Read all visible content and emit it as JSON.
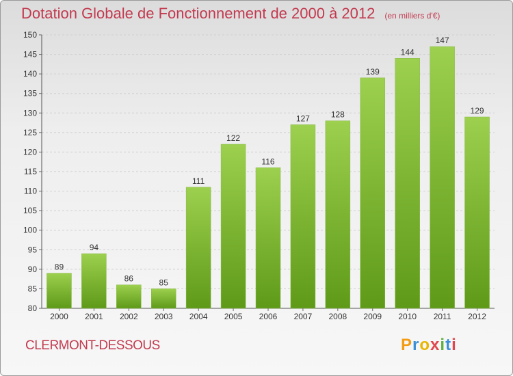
{
  "title": "Dotation Globale de Fonctionnement de 2000 à 2012",
  "unit": "(en milliers d'€)",
  "town": "CLERMONT-DESSOUS",
  "logo": {
    "letters": [
      "P",
      "r",
      "o",
      "x",
      "i",
      "t",
      "i"
    ],
    "colors": [
      "#f39c12",
      "#3b8fd6",
      "#e8b500",
      "#e0464c",
      "#5fb13d",
      "#3b8fd6",
      "#e0464c"
    ]
  },
  "colors": {
    "bar_top": "#9cd04e",
    "bar_bottom": "#5e9a18",
    "title": "#c23a4f",
    "grid": "#cfcfcf"
  },
  "chart_data": {
    "type": "bar",
    "categories": [
      "2000",
      "2001",
      "2002",
      "2003",
      "2004",
      "2005",
      "2006",
      "2007",
      "2008",
      "2009",
      "2010",
      "2011",
      "2012"
    ],
    "values": [
      89,
      94,
      86,
      85,
      111,
      122,
      116,
      127,
      128,
      139,
      144,
      147,
      129
    ],
    "ylim": [
      80,
      150
    ],
    "yticks": [
      80,
      85,
      90,
      95,
      100,
      105,
      110,
      115,
      120,
      125,
      130,
      135,
      140,
      145,
      150
    ],
    "grid": "horizontal dashed",
    "data_labels": true
  }
}
